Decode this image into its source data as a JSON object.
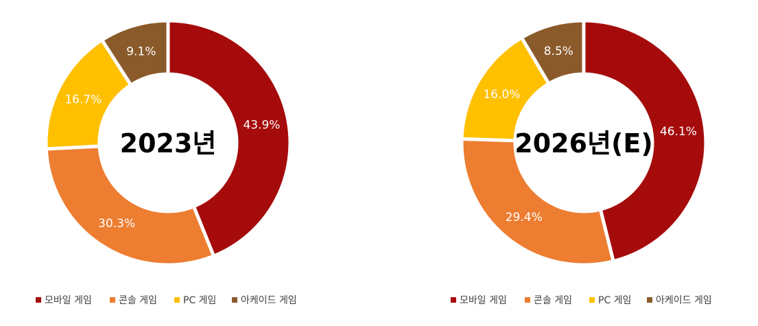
{
  "chart_data": [
    {
      "type": "pie",
      "title": "2023년",
      "categories": [
        "모바일 게임",
        "콘솔 게임",
        "PC 게임",
        "아케이드 게임"
      ],
      "values": [
        43.9,
        30.3,
        16.7,
        9.1
      ],
      "labels": [
        "43.9%",
        "30.3%",
        "16.7%",
        "9.1%"
      ],
      "colors": [
        "#A50B0B",
        "#ED7D31",
        "#FFC000",
        "#8B5A2B"
      ],
      "legend": "bottom"
    },
    {
      "type": "pie",
      "title": "2026년(E)",
      "categories": [
        "모바일 게임",
        "콘솔 게임",
        "PC 게임",
        "아케이드 게임"
      ],
      "values": [
        46.1,
        29.4,
        16.0,
        8.5
      ],
      "labels": [
        "46.1%",
        "29.4%",
        "16.0%",
        "8.5%"
      ],
      "colors": [
        "#A50B0B",
        "#ED7D31",
        "#FFC000",
        "#8B5A2B"
      ],
      "legend": "bottom"
    }
  ]
}
